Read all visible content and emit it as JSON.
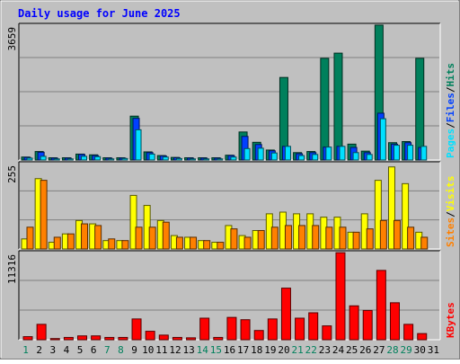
{
  "chart_data": {
    "type": "bar",
    "title": "Daily usage for June 2025",
    "colors": {
      "background": "#c0c0c0",
      "title": "#0000ff",
      "hits": "#00805c",
      "files": "#0040ff",
      "pages": "#00e0ff",
      "visits": "#ffff00",
      "sites": "#ff8000",
      "kbytes": "#ff0000",
      "weekday_label": "#000000",
      "weekend_label": "#00805c"
    },
    "days": [
      "1",
      "2",
      "3",
      "4",
      "5",
      "6",
      "7",
      "8",
      "9",
      "10",
      "11",
      "12",
      "13",
      "14",
      "15",
      "16",
      "17",
      "18",
      "19",
      "20",
      "21",
      "22",
      "23",
      "24",
      "25",
      "26",
      "27",
      "28",
      "29",
      "30",
      "31"
    ],
    "weekend_days": [
      "1",
      "7",
      "8",
      "14",
      "15",
      "21",
      "22",
      "28",
      "29"
    ],
    "panels": [
      {
        "id": "hits-files-pages",
        "ymax_label": "3659",
        "ymax": 3659,
        "legend": [
          "Pages",
          "Files",
          "Hits"
        ],
        "series": [
          {
            "name": "Hits",
            "color_key": "hits",
            "values": [
              80,
              230,
              60,
              60,
              160,
              140,
              60,
              60,
              1190,
              220,
              120,
              70,
              60,
              60,
              60,
              130,
              760,
              480,
              270,
              2240,
              200,
              230,
              2760,
              2900,
              430,
              240,
              3660,
              470,
              500,
              2760,
              0
            ]
          },
          {
            "name": "Files",
            "color_key": "files",
            "values": [
              70,
              210,
              50,
              50,
              150,
              120,
              50,
              50,
              1130,
              200,
              110,
              60,
              50,
              50,
              50,
              120,
              640,
              420,
              250,
              370,
              170,
              200,
              350,
              370,
              340,
              200,
              1270,
              430,
              470,
              340,
              0
            ]
          },
          {
            "name": "Pages",
            "color_key": "pages",
            "values": [
              50,
              100,
              30,
              30,
              100,
              90,
              30,
              40,
              820,
              160,
              80,
              40,
              30,
              30,
              30,
              80,
              310,
              320,
              190,
              370,
              120,
              150,
              350,
              370,
              200,
              150,
              1120,
              400,
              400,
              370,
              0
            ]
          }
        ]
      },
      {
        "id": "visits-sites",
        "ymax_label": "255",
        "ymax": 255,
        "legend": [
          "Sites",
          "Visits"
        ],
        "series": [
          {
            "name": "Visits",
            "color_key": "visits",
            "values": [
              30,
              210,
              20,
              45,
              85,
              75,
              25,
              25,
              160,
              130,
              85,
              40,
              35,
              25,
              20,
              70,
              40,
              55,
              105,
              110,
              105,
              105,
              95,
              95,
              50,
              105,
              205,
              245,
              195,
              50,
              0
            ]
          },
          {
            "name": "Sites",
            "color_key": "sites",
            "values": [
              65,
              205,
              35,
              45,
              75,
              70,
              30,
              25,
              65,
              65,
              80,
              35,
              35,
              25,
              20,
              60,
              35,
              55,
              65,
              70,
              70,
              70,
              65,
              65,
              50,
              60,
              85,
              85,
              65,
              35,
              0
            ]
          }
        ]
      },
      {
        "id": "kbytes",
        "ymax_label": "11316",
        "ymax": 11316,
        "legend": [
          "KBytes"
        ],
        "series": [
          {
            "name": "KBytes",
            "color_key": "kbytes",
            "values": [
              400,
              2000,
              150,
              300,
              500,
              500,
              300,
              300,
              2700,
              1100,
              600,
              300,
              250,
              2800,
              300,
              2900,
              2600,
              1200,
              2700,
              6700,
              2800,
              3500,
              1800,
              11300,
              4400,
              3800,
              9000,
              4800,
              2000,
              800,
              0
            ]
          }
        ]
      }
    ]
  }
}
